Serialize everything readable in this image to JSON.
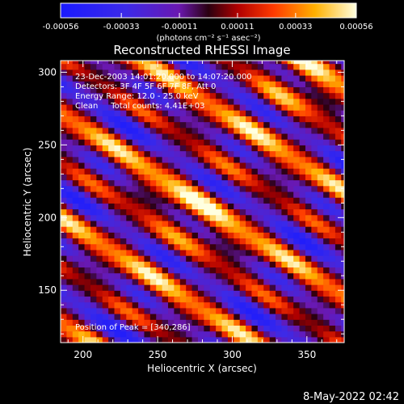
{
  "chart_data": {
    "type": "heatmap",
    "title": "Reconstructed RHESSI Image",
    "xlabel": "Heliocentric X (arcsec)",
    "ylabel": "Heliocentric Y (arcsec)",
    "xlim": [
      185,
      375
    ],
    "ylim": [
      114,
      308
    ],
    "x_ticks": [
      200,
      250,
      300,
      350
    ],
    "y_ticks": [
      150,
      200,
      250,
      300
    ],
    "colorbar": {
      "range": [
        -0.00056,
        0.00056
      ],
      "tick_labels": [
        "-0.00056",
        "-0.00033",
        "-0.00011",
        "0.00011",
        "0.00033",
        "0.00056"
      ],
      "units_label": "(photons cm⁻² s⁻¹ asec⁻²)",
      "colormap": "blue-purple-red-yellow-white"
    },
    "annotations": [
      "23-Dec-2003 14:01:20.000 to 14:07:20.000",
      "Detectors: 3F 4F 5F 6F 7F 8F, Att 0",
      "Energy Range: 12.0 - 25.0 keV",
      "Clean     Total counts: 4.41E+03"
    ],
    "peak_label": "Position of Peak = [340,286]",
    "peak_position": [
      340,
      286
    ]
  },
  "footer": {
    "timestamp": "8-May-2022 02:42"
  }
}
